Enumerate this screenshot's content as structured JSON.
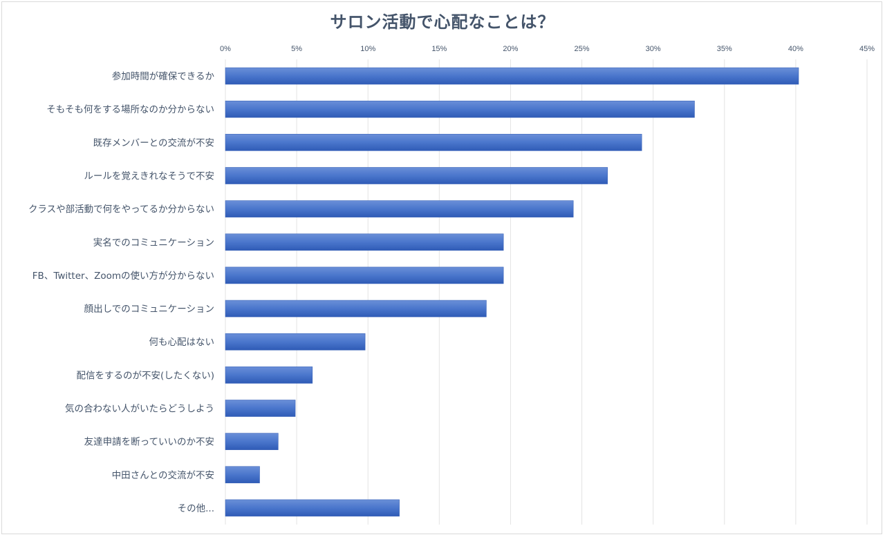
{
  "chart_data": {
    "type": "bar",
    "orientation": "horizontal",
    "title": "サロン活動で心配なことは？",
    "xlabel": "",
    "ylabel": "",
    "xlim": [
      0,
      45
    ],
    "x_ticks": [
      "0%",
      "5%",
      "10%",
      "15%",
      "20%",
      "25%",
      "30%",
      "35%",
      "40%",
      "45%"
    ],
    "x_axis_position": "top",
    "grid": true,
    "legend": "none",
    "bar_color": "#4472c4",
    "categories": [
      "参加時間が確保できるか",
      "そもそも何をする場所なのか分からない",
      "既存メンバーとの交流が不安",
      "ルールを覚えきれなそうで不安",
      "クラスや部活動で何をやってるか分からない",
      "実名でのコミュニケーション",
      "FB、Twitter、Zoomの使い方が分からない",
      "顔出しでのコミュニケーション",
      "何も心配はない",
      "配信をするのが不安(したくない)",
      "気の合わない人がいたらどうしよう",
      "友達申請を断っていいのか不安",
      "中田さんとの交流が不安",
      "その他..."
    ],
    "values": [
      40.2,
      32.9,
      29.2,
      26.8,
      24.4,
      19.5,
      19.5,
      18.3,
      9.8,
      6.1,
      4.9,
      3.7,
      2.4,
      12.2
    ]
  }
}
